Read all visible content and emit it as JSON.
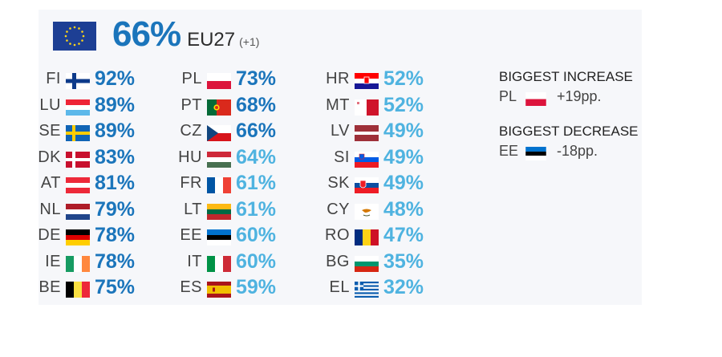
{
  "headline": {
    "value": "66%",
    "label": "EU27",
    "change": "(+1)"
  },
  "chart_data": {
    "type": "table",
    "unit": "%",
    "eu27": {
      "value": 66,
      "change": "+1"
    },
    "columns": [
      [
        {
          "code": "FI",
          "value": 92,
          "label": "92%",
          "flag": "fi"
        },
        {
          "code": "LU",
          "value": 89,
          "label": "89%",
          "flag": "lu"
        },
        {
          "code": "SE",
          "value": 89,
          "label": "89%",
          "flag": "se"
        },
        {
          "code": "DK",
          "value": 83,
          "label": "83%",
          "flag": "dk"
        },
        {
          "code": "AT",
          "value": 81,
          "label": "81%",
          "flag": "at"
        },
        {
          "code": "NL",
          "value": 79,
          "label": "79%",
          "flag": "nl"
        },
        {
          "code": "DE",
          "value": 78,
          "label": "78%",
          "flag": "de"
        },
        {
          "code": "IE",
          "value": 78,
          "label": "78%",
          "flag": "ie"
        },
        {
          "code": "BE",
          "value": 75,
          "label": "75%",
          "flag": "be"
        }
      ],
      [
        {
          "code": "PL",
          "value": 73,
          "label": "73%",
          "flag": "pl"
        },
        {
          "code": "PT",
          "value": 68,
          "label": "68%",
          "flag": "pt"
        },
        {
          "code": "CZ",
          "value": 66,
          "label": "66%",
          "flag": "cz"
        },
        {
          "code": "HU",
          "value": 64,
          "label": "64%",
          "flag": "hu"
        },
        {
          "code": "FR",
          "value": 61,
          "label": "61%",
          "flag": "fr"
        },
        {
          "code": "LT",
          "value": 61,
          "label": "61%",
          "flag": "lt"
        },
        {
          "code": "EE",
          "value": 60,
          "label": "60%",
          "flag": "ee"
        },
        {
          "code": "IT",
          "value": 60,
          "label": "60%",
          "flag": "it"
        },
        {
          "code": "ES",
          "value": 59,
          "label": "59%",
          "flag": "es"
        }
      ],
      [
        {
          "code": "HR",
          "value": 52,
          "label": "52%",
          "flag": "hr"
        },
        {
          "code": "MT",
          "value": 52,
          "label": "52%",
          "flag": "mt"
        },
        {
          "code": "LV",
          "value": 49,
          "label": "49%",
          "flag": "lv"
        },
        {
          "code": "SI",
          "value": 49,
          "label": "49%",
          "flag": "si"
        },
        {
          "code": "SK",
          "value": 49,
          "label": "49%",
          "flag": "sk"
        },
        {
          "code": "CY",
          "value": 48,
          "label": "48%",
          "flag": "cy"
        },
        {
          "code": "RO",
          "value": 47,
          "label": "47%",
          "flag": "ro"
        },
        {
          "code": "BG",
          "value": 35,
          "label": "35%",
          "flag": "bg"
        },
        {
          "code": "EL",
          "value": 32,
          "label": "32%",
          "flag": "el"
        }
      ]
    ],
    "colors": {
      "above_eu": "#1b75bb",
      "below_eu": "#4fb3e0"
    },
    "biggest_increase": {
      "title": "BIGGEST INCREASE",
      "code": "PL",
      "delta": "+19pp.",
      "flag": "pl"
    },
    "biggest_decrease": {
      "title": "BIGGEST DECREASE",
      "code": "EE",
      "delta": "-18pp.",
      "flag": "ee"
    }
  }
}
